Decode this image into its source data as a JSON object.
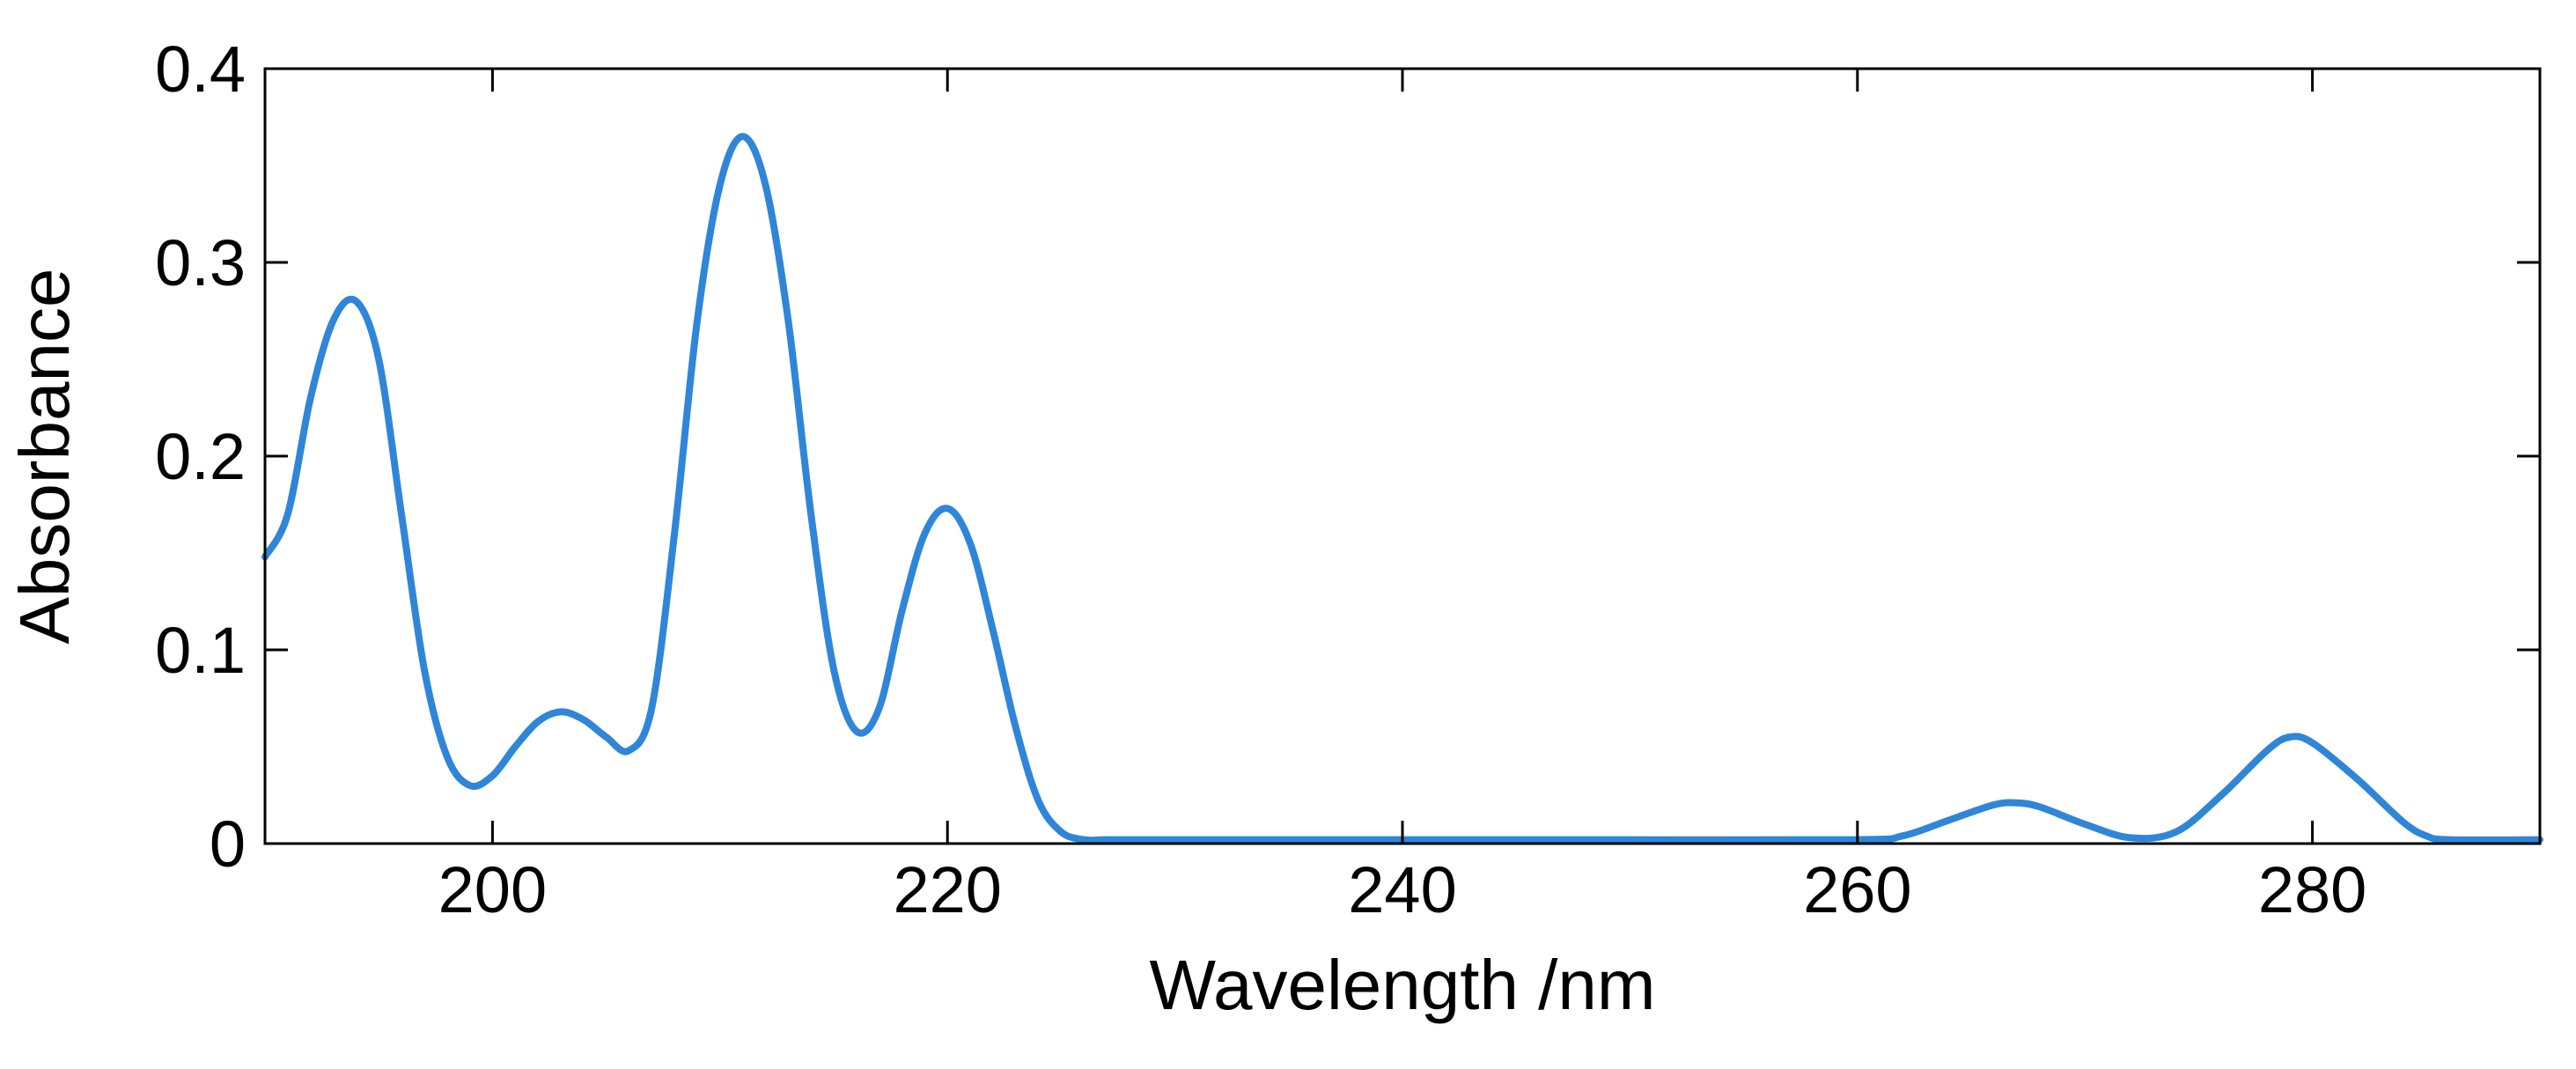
{
  "chart_data": {
    "type": "line",
    "title": "",
    "xlabel": "Wavelength /nm",
    "ylabel": "Absorbance",
    "xlim": [
      190,
      290
    ],
    "ylim": [
      0,
      0.4
    ],
    "xticks": [
      200,
      220,
      240,
      260,
      280
    ],
    "yticks": [
      0,
      0.1,
      0.2,
      0.3,
      0.4
    ],
    "xtick_labels": [
      "200",
      "220",
      "240",
      "260",
      "280"
    ],
    "ytick_labels": [
      "0",
      "0.1",
      "0.2",
      "0.3",
      "0.4"
    ],
    "grid": false,
    "legend": "none",
    "line_color": "#2f86d8",
    "series": [
      {
        "x": [
          190,
          191,
          192,
          193,
          194,
          195,
          196,
          197,
          198,
          199,
          200,
          201,
          202,
          203,
          204,
          205,
          206,
          207,
          208,
          209,
          210,
          211,
          212,
          213,
          214,
          215,
          216,
          217,
          218,
          219,
          220,
          221,
          222,
          223,
          224,
          225,
          226,
          227,
          230,
          240,
          250,
          260,
          262,
          264,
          266,
          267,
          268,
          270,
          272,
          274,
          276,
          278,
          279,
          280,
          282,
          284,
          285,
          286,
          290
        ],
        "y": [
          0.148,
          0.17,
          0.23,
          0.27,
          0.28,
          0.25,
          0.17,
          0.09,
          0.045,
          0.03,
          0.035,
          0.05,
          0.063,
          0.068,
          0.064,
          0.055,
          0.048,
          0.07,
          0.16,
          0.27,
          0.34,
          0.365,
          0.34,
          0.27,
          0.17,
          0.09,
          0.058,
          0.07,
          0.12,
          0.16,
          0.173,
          0.155,
          0.11,
          0.06,
          0.022,
          0.006,
          0.002,
          0.002,
          0.002,
          0.002,
          0.002,
          0.002,
          0.004,
          0.012,
          0.02,
          0.021,
          0.019,
          0.01,
          0.003,
          0.006,
          0.025,
          0.048,
          0.055,
          0.052,
          0.033,
          0.011,
          0.004,
          0.002,
          0.002
        ]
      }
    ]
  }
}
